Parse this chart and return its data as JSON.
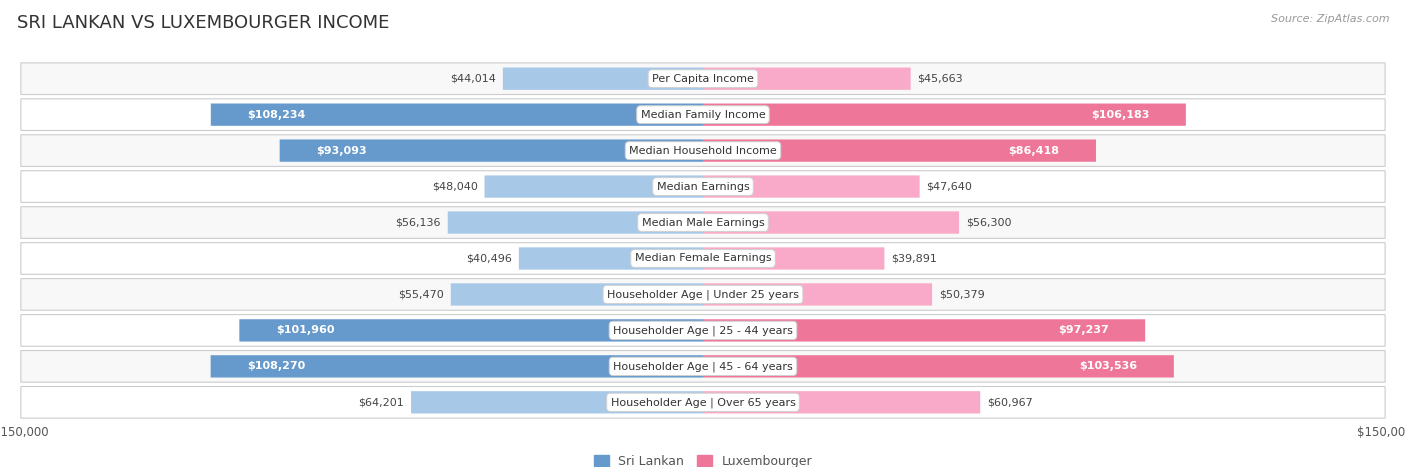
{
  "title": "SRI LANKAN VS LUXEMBOURGER INCOME",
  "source": "Source: ZipAtlas.com",
  "categories": [
    "Per Capita Income",
    "Median Family Income",
    "Median Household Income",
    "Median Earnings",
    "Median Male Earnings",
    "Median Female Earnings",
    "Householder Age | Under 25 years",
    "Householder Age | 25 - 44 years",
    "Householder Age | 45 - 64 years",
    "Householder Age | Over 65 years"
  ],
  "sri_lankan": [
    44014,
    108234,
    93093,
    48040,
    56136,
    40496,
    55470,
    101960,
    108270,
    64201
  ],
  "luxembourger": [
    45663,
    106183,
    86418,
    47640,
    56300,
    39891,
    50379,
    97237,
    103536,
    60967
  ],
  "sri_lankan_labels": [
    "$44,014",
    "$108,234",
    "$93,093",
    "$48,040",
    "$56,136",
    "$40,496",
    "$55,470",
    "$101,960",
    "$108,270",
    "$64,201"
  ],
  "luxembourger_labels": [
    "$45,663",
    "$106,183",
    "$86,418",
    "$47,640",
    "$56,300",
    "$39,891",
    "$50,379",
    "$97,237",
    "$103,536",
    "$60,967"
  ],
  "sri_lankan_color_light": "#a8c8e8",
  "sri_lankan_color_dark": "#6699cc",
  "luxembourger_color_light": "#f8aac8",
  "luxembourger_color_dark": "#ee7799",
  "threshold_inside": 65000,
  "max_value": 150000,
  "background_color": "#ffffff",
  "row_bg_odd": "#f8f8f8",
  "row_bg_even": "#ffffff",
  "bar_height": 0.62,
  "title_fontsize": 13,
  "label_fontsize": 8.0,
  "category_fontsize": 8.0,
  "axis_fontsize": 8.5,
  "legend_fontsize": 9
}
